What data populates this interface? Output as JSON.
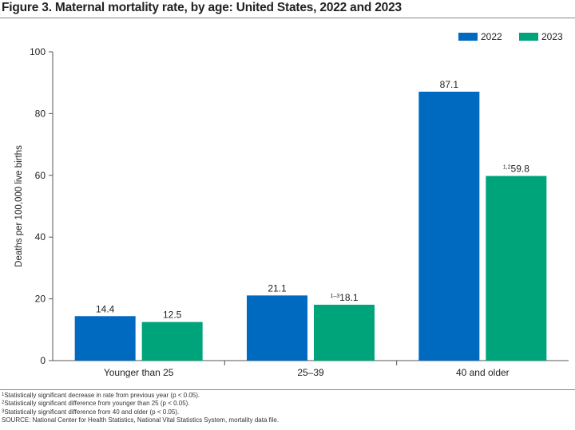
{
  "title": "Figure 3. Maternal mortality rate, by age: United States, 2022 and 2023",
  "colors": {
    "s2022": "#0069c0",
    "s2023": "#00a47a",
    "axis": "#555555"
  },
  "chart_data": {
    "type": "bar",
    "title": "Figure 3. Maternal mortality rate, by age: United States, 2022 and 2023",
    "xlabel": "",
    "ylabel": "Deaths per 100,000 live births",
    "ylim": [
      0,
      100
    ],
    "yticks": [
      "0",
      "20",
      "40",
      "60",
      "80",
      "100"
    ],
    "categories": [
      "Younger than 25",
      "25–39",
      "40 and older"
    ],
    "grid": false,
    "legend_position": "top-right",
    "series": [
      {
        "name": "2022",
        "values": [
          14.4,
          21.1,
          87.1
        ],
        "labels": [
          "14.4",
          "21.1",
          "87.1"
        ],
        "sups": [
          "",
          "",
          ""
        ]
      },
      {
        "name": "2023",
        "values": [
          12.5,
          18.1,
          59.8
        ],
        "labels": [
          "12.5",
          "18.1",
          "59.8"
        ],
        "sups": [
          "",
          "1–3",
          "1,2"
        ]
      }
    ]
  },
  "footnotes": [
    {
      "sup": "1",
      "text": "Statistically significant decrease in rate from previous year (p < 0.05)."
    },
    {
      "sup": "2",
      "text": "Statistically significant difference from younger than 25 (p < 0.05)."
    },
    {
      "sup": "3",
      "text": "Statistically significant difference from 40 and older (p < 0.05)."
    },
    {
      "sup": "",
      "text": "SOURCE: National Center for Health Statistics, National Vital Statistics System, mortality data file."
    }
  ]
}
